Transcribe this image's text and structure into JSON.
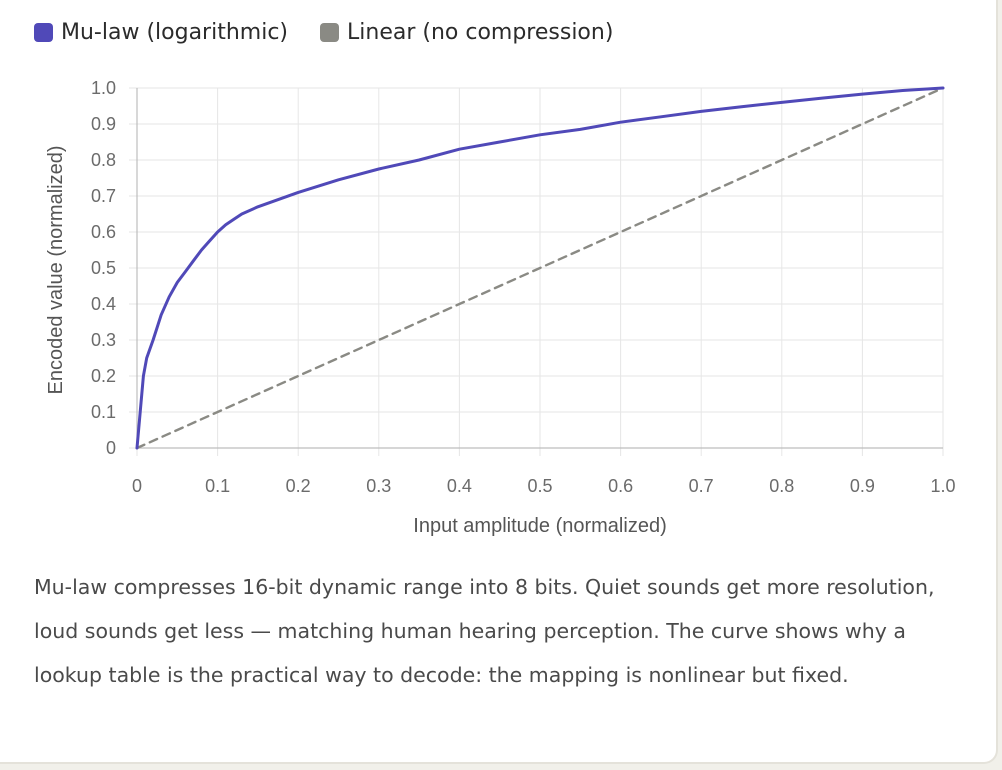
{
  "colors": {
    "mulaw": "#5049b8",
    "linear": "#8a8a84",
    "grid": "#e6e6e6",
    "axis": "#bdbdbd"
  },
  "chart_data": {
    "type": "line",
    "title": "",
    "xlabel": "Input amplitude (normalized)",
    "ylabel": "Encoded value (normalized)",
    "xlim": [
      0,
      1
    ],
    "ylim": [
      0,
      1
    ],
    "x_ticks": [
      "0",
      "0.1",
      "0.2",
      "0.3",
      "0.4",
      "0.5",
      "0.6",
      "0.7",
      "0.8",
      "0.9",
      "1.0"
    ],
    "y_ticks": [
      "0",
      "0.1",
      "0.2",
      "0.3",
      "0.4",
      "0.5",
      "0.6",
      "0.7",
      "0.8",
      "0.9",
      "1.0"
    ],
    "grid": true,
    "legend_position": "top-left",
    "series": [
      {
        "name": "Mu-law (logarithmic)",
        "style": "solid",
        "color": "#5049b8",
        "points": [
          [
            0,
            0
          ],
          [
            0.004,
            0.1
          ],
          [
            0.008,
            0.2
          ],
          [
            0.012,
            0.25
          ],
          [
            0.02,
            0.3
          ],
          [
            0.03,
            0.37
          ],
          [
            0.04,
            0.42
          ],
          [
            0.05,
            0.46
          ],
          [
            0.06,
            0.49
          ],
          [
            0.07,
            0.52
          ],
          [
            0.08,
            0.55
          ],
          [
            0.09,
            0.575
          ],
          [
            0.1,
            0.6
          ],
          [
            0.11,
            0.62
          ],
          [
            0.12,
            0.635
          ],
          [
            0.13,
            0.65
          ],
          [
            0.15,
            0.67
          ],
          [
            0.2,
            0.71
          ],
          [
            0.25,
            0.745
          ],
          [
            0.3,
            0.775
          ],
          [
            0.35,
            0.8
          ],
          [
            0.4,
            0.83
          ],
          [
            0.45,
            0.85
          ],
          [
            0.5,
            0.87
          ],
          [
            0.55,
            0.885
          ],
          [
            0.6,
            0.905
          ],
          [
            0.65,
            0.92
          ],
          [
            0.7,
            0.935
          ],
          [
            0.75,
            0.948
          ],
          [
            0.8,
            0.96
          ],
          [
            0.85,
            0.972
          ],
          [
            0.9,
            0.983
          ],
          [
            0.95,
            0.993
          ],
          [
            1.0,
            1.0
          ]
        ]
      },
      {
        "name": "Linear (no compression)",
        "style": "dashed",
        "color": "#8a8a84",
        "points": [
          [
            0,
            0
          ],
          [
            1,
            1
          ]
        ]
      }
    ]
  },
  "caption": "Mu-law compresses 16-bit dynamic range into 8 bits. Quiet sounds get more resolution, loud sounds get less — matching human hearing perception. The curve shows why a lookup table is the practical way to decode: the mapping is nonlinear but fixed."
}
